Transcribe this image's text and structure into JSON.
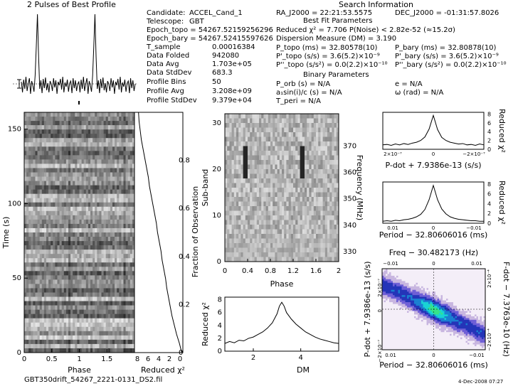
{
  "header": {
    "profile_title": "2 Pulses of Best Profile",
    "search_title": "Search Information",
    "best_fit_title": "Best Fit Parameters",
    "binary_title": "Binary Parameters"
  },
  "info_left": [
    {
      "k": "Candidate:",
      "v": "ACCEL_Cand_1"
    },
    {
      "k": "Telescope:",
      "v": "GBT"
    },
    {
      "k": "Epoch_topo = 54267.52159256296",
      "v": ""
    },
    {
      "k": "Epoch_bary = 54267.52415597626",
      "v": ""
    },
    {
      "k": "T_sample",
      "v": "0.00016384"
    },
    {
      "k": "Data Folded",
      "v": "942080"
    },
    {
      "k": "Data Avg",
      "v": "1.703e+05"
    },
    {
      "k": "Data StdDev",
      "v": "683.3"
    },
    {
      "k": "Profile Bins",
      "v": "50"
    },
    {
      "k": "Profile Avg",
      "v": "3.208e+09"
    },
    {
      "k": "Profile StdDev",
      "v": "9.379e+04"
    }
  ],
  "info_right": {
    "ra": "RA_J2000 = 22:21:53.5575",
    "dec": "DEC_J2000 = -01:31:57.8026",
    "reduced": "Reduced χ² = 7.706   P(Noise) < 2.82e-52   (≈15.2σ)",
    "dm": "Dispersion Measure (DM) = 3.190",
    "p_topo": "P_topo (ms) = 32.80578(10)",
    "pd_topo": "P'_topo (s/s) = 3.6(5.2)×10⁻⁹",
    "pdd_topo": "P''_topo (s/s²) = 0.0(2.2)×10⁻¹⁰",
    "p_bary": "P_bary (ms) = 32.80878(10)",
    "pd_bary": "P'_bary (s/s) = 3.6(5.2)×10⁻⁹",
    "pdd_bary": "P''_bary (s/s²) = 0.0(2.2)×10⁻¹⁰",
    "porb": "P_orb (s) = N/A",
    "asini": "a₁sin(i)/c (s) = N/A",
    "tperi": "T_peri = N/A",
    "e": "e = N/A",
    "omega": "ω (rad) = N/A"
  },
  "footer": {
    "filename": "GBT350drift_54267_2221-0131_DS2.fil",
    "date": "4-Dec-2008 07:27"
  },
  "chart_data": [
    {
      "type": "line",
      "name": "profile",
      "title": "2 Pulses of Best Profile",
      "x": [
        0,
        0.02,
        0.04,
        0.06,
        0.08,
        0.1,
        0.12,
        0.14,
        0.16,
        0.18,
        0.2,
        0.22,
        0.24,
        0.26,
        0.28,
        0.3,
        0.32,
        0.34,
        0.36,
        0.38,
        0.4,
        0.42,
        0.44,
        0.46,
        0.48,
        0.5,
        0.52,
        0.54,
        0.56,
        0.58,
        0.6,
        0.62,
        0.64,
        0.66,
        0.68,
        0.7,
        0.72,
        0.74,
        0.76,
        0.78,
        0.8,
        0.82,
        0.84,
        0.86,
        0.88,
        0.9,
        0.92,
        0.94,
        0.96,
        0.98
      ],
      "values": [
        0.05,
        -0.1,
        0.08,
        -0.05,
        0.12,
        -0.08,
        0.02,
        0.1,
        -0.12,
        0.06,
        0.0,
        -0.09,
        0.14,
        0.55,
        1.0,
        0.4,
        -0.05,
        0.07,
        -0.11,
        0.09,
        -0.04,
        0.11,
        -0.07,
        0.03,
        -0.1,
        0.06,
        0.02,
        -0.08,
        0.1,
        -0.03,
        0.07,
        -0.12,
        0.05,
        0.0,
        0.09,
        -0.06,
        0.12,
        -0.1,
        0.04,
        -0.02,
        0.08,
        -0.09,
        0.03,
        0.06,
        -0.11,
        0.1,
        -0.04,
        0.07,
        -0.08,
        0.02
      ]
    },
    {
      "type": "heatmap",
      "name": "time-phase",
      "xlabel": "Phase",
      "ylabel": "Time (s)",
      "xticks": [
        "0",
        "0.5",
        "1",
        "1.5"
      ],
      "yticks": [
        "0",
        "50",
        "100",
        "150"
      ],
      "y2label": "Fraction of Observation",
      "y2ticks": [
        "0",
        "0.2",
        "0.4",
        "0.6",
        "0.8"
      ]
    },
    {
      "type": "line",
      "name": "time-chi2",
      "xlabel": "Reduced χ²",
      "xticks": [
        "8",
        "6",
        "4",
        "2",
        "0"
      ],
      "values": [
        0.2,
        0.6,
        1.1,
        1.5,
        1.9,
        2.2,
        2.5,
        2.8,
        3.0,
        3.3,
        3.6,
        3.8,
        4.1,
        4.4,
        4.6,
        4.9,
        5.2,
        5.5,
        5.8,
        6.0,
        6.3,
        6.6,
        6.9,
        7.2,
        7.4,
        7.6,
        7.7
      ]
    },
    {
      "type": "heatmap",
      "name": "subband-phase",
      "xlabel": "Phase",
      "ylabel": "Sub-band",
      "xticks": [
        "0",
        "0.4",
        "0.8",
        "1.2",
        "1.6",
        "2"
      ],
      "yticks": [
        "0",
        "10",
        "20",
        "30"
      ],
      "y2label": "Frequency (MHz)",
      "y2ticks": [
        "330",
        "340",
        "350",
        "360",
        "370"
      ]
    },
    {
      "type": "line",
      "name": "dm-chi2",
      "xlabel": "DM",
      "ylabel": "Reduced χ²",
      "xticks": [
        "2",
        "4"
      ],
      "yticks": [
        "0",
        "2",
        "4",
        "6",
        "8"
      ],
      "x": [
        0.8,
        1.0,
        1.2,
        1.4,
        1.6,
        1.8,
        2.0,
        2.2,
        2.4,
        2.6,
        2.8,
        3.0,
        3.1,
        3.2,
        3.3,
        3.4,
        3.6,
        3.8,
        4.0,
        4.2,
        4.4,
        4.6,
        4.8,
        5.0,
        5.2,
        5.4,
        5.6
      ],
      "values": [
        1.2,
        1.5,
        1.3,
        1.7,
        1.6,
        2.0,
        2.2,
        2.6,
        3.0,
        3.6,
        4.4,
        5.8,
        7.0,
        7.6,
        7.0,
        6.0,
        5.0,
        4.2,
        3.6,
        3.0,
        2.6,
        2.2,
        1.9,
        1.7,
        1.5,
        1.3,
        1.2
      ]
    },
    {
      "type": "line",
      "name": "pdot-chi2",
      "xlabel": "P-dot + 7.9386e-13 (s/s)",
      "y2label": "Reduced χ²",
      "xticks": [
        "2×10⁻⁷",
        "0",
        "−2×10⁻⁷"
      ],
      "y2ticks": [
        "0",
        "2",
        "4",
        "6",
        "8"
      ],
      "values": [
        1.0,
        1.1,
        0.9,
        1.2,
        1.0,
        1.3,
        1.1,
        1.4,
        1.6,
        2.0,
        2.8,
        4.6,
        7.7,
        4.5,
        2.7,
        2.0,
        1.6,
        1.4,
        1.2,
        1.3,
        1.0,
        1.1,
        0.9,
        1.2,
        1.0
      ]
    },
    {
      "type": "line",
      "name": "period-chi2",
      "xlabel": "Period − 32.80606016 (ms)",
      "y2label": "Reduced χ²",
      "xticks": [
        "0.01",
        "0",
        "−0.01"
      ],
      "y2ticks": [
        "0",
        "2",
        "4",
        "6",
        "8"
      ],
      "values": [
        0.4,
        0.5,
        0.4,
        0.6,
        0.5,
        0.7,
        0.8,
        1.0,
        1.3,
        1.8,
        2.8,
        4.8,
        7.7,
        4.8,
        2.9,
        1.9,
        1.3,
        1.0,
        0.8,
        0.7,
        0.6,
        0.5,
        0.5,
        0.4,
        0.4
      ]
    },
    {
      "type": "heatmap",
      "name": "pdot-period",
      "title": "Freq − 30.482173 (Hz)",
      "xlabel": "Period − 32.80606016 (ms)",
      "ylabel": "P-dot + 7.9386e-13 (s/s)",
      "y2label": "F-dot − 7.3763e-10 (Hz)",
      "xticks": [
        "0.01",
        "0",
        "−0.01"
      ],
      "topticks": [
        "−0.01",
        "0",
        "0.01"
      ],
      "yticks": [
        "2×10⁻⁷",
        "0",
        "−2×10⁻⁷"
      ],
      "y2ticks": [
        "2×10⁻⁴",
        "0",
        "−2×10⁻⁴"
      ],
      "colors": [
        "#f4eef8",
        "#c8b6e0",
        "#6f5fd6",
        "#2434b8",
        "#1a7fd1",
        "#18d3d3",
        "#36e28a"
      ]
    }
  ]
}
